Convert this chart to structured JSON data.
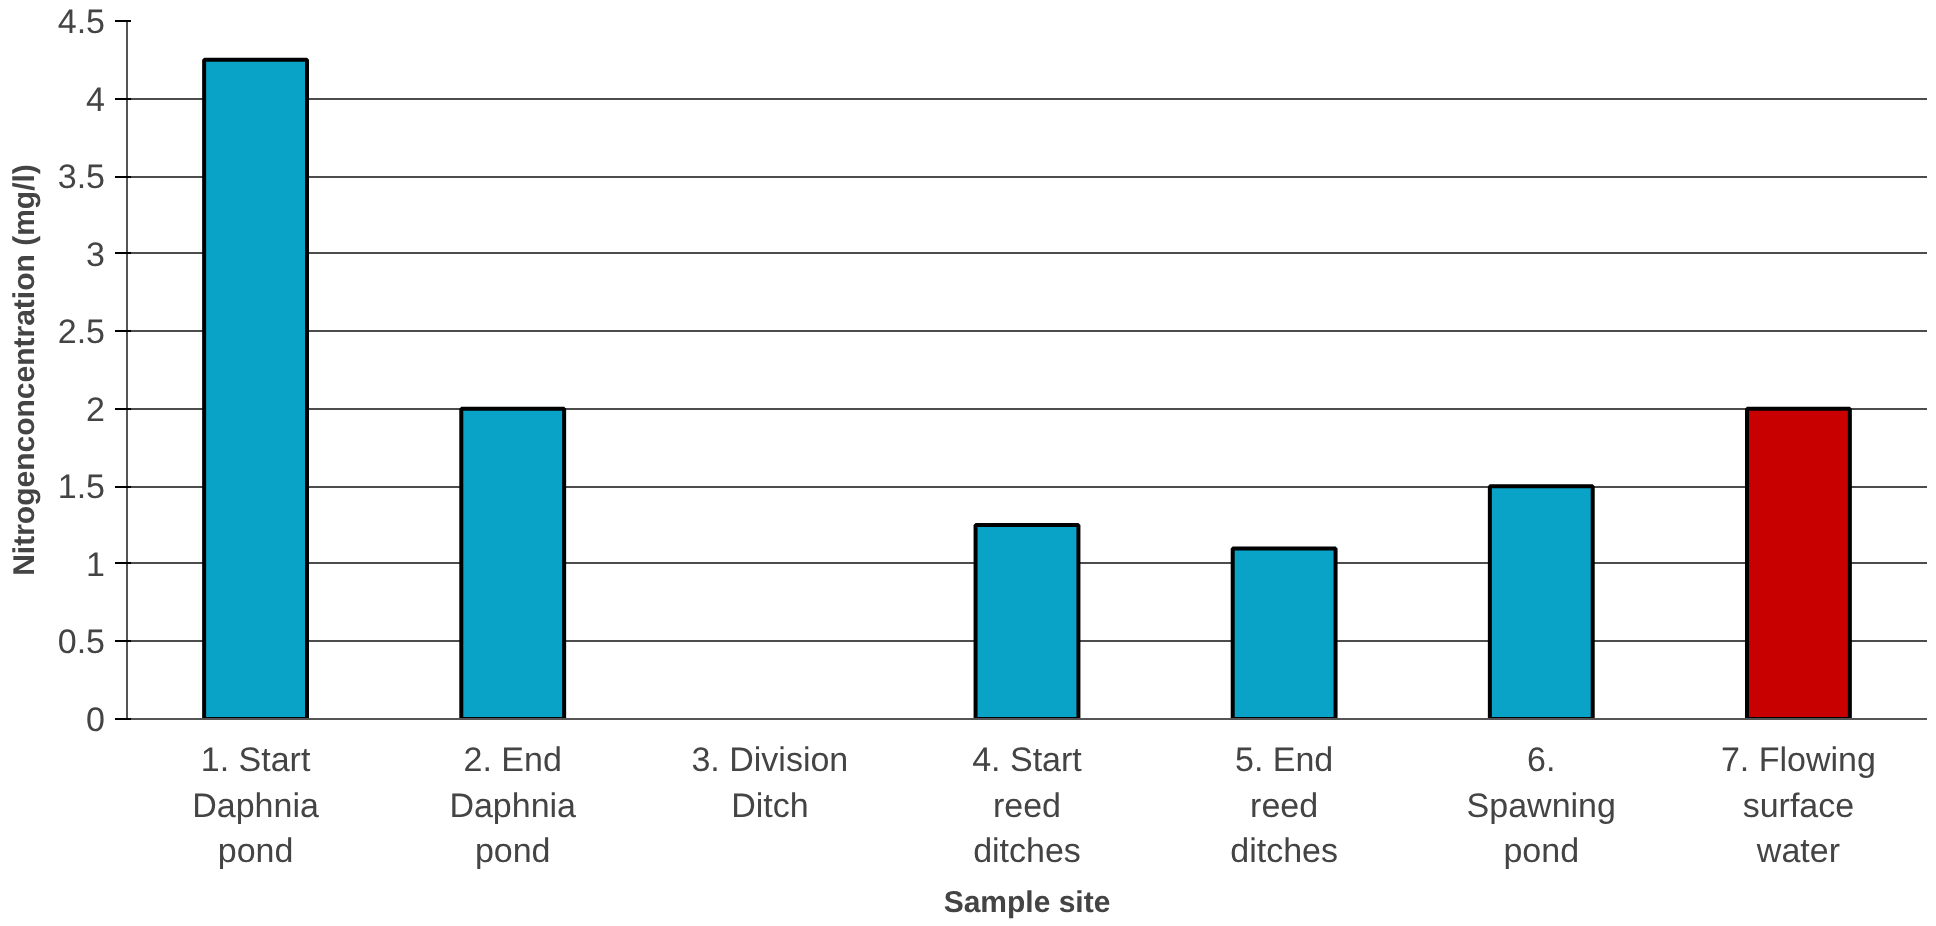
{
  "chart_data": {
    "type": "bar",
    "xlabel": "Sample site",
    "ylabel": "Nitrogenconcentration (mg/l)",
    "categories": [
      "1. Start\nDaphnia\npond",
      "2. End\nDaphnia\npond",
      "3. Division\nDitch",
      "4. Start\nreed\nditches",
      "5. End\nreed\nditches",
      "6.\nSpawning\npond",
      "7. Flowing\nsurface\nwater"
    ],
    "values": [
      4.25,
      2.0,
      null,
      1.25,
      1.1,
      1.5,
      2.0
    ],
    "colors": [
      "#0aa3c8",
      "#0aa3c8",
      "#0aa3c8",
      "#0aa3c8",
      "#0aa3c8",
      "#0aa3c8",
      "#c80000"
    ],
    "ylim": [
      0,
      4.5
    ],
    "yticks": [
      0,
      0.5,
      1,
      1.5,
      2,
      2.5,
      3,
      3.5,
      4,
      4.5
    ],
    "grid": "y"
  }
}
